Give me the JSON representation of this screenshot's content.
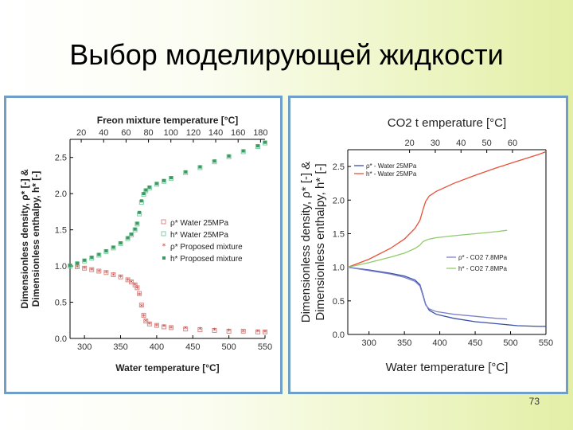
{
  "slide": {
    "title": "Выбор моделирующей жидкости",
    "page_number": "73"
  },
  "chart_data": [
    {
      "type": "scatter",
      "title": "",
      "top_axis": {
        "label": "Freon mixture temperature [°C]",
        "range": [
          10,
          184
        ],
        "ticks": [
          20,
          40,
          60,
          80,
          100,
          120,
          140,
          160,
          180
        ]
      },
      "xlabel": "Water temperature [°C]",
      "ylabel_line1": "Dimensionless density, ρ* [-] &",
      "ylabel_line2": "Dimensionless enthalpy, h* [-]",
      "xlim": [
        280,
        550
      ],
      "ylim": [
        0,
        2.75
      ],
      "x_ticks": [
        300,
        350,
        400,
        450,
        500,
        550
      ],
      "y_ticks": [
        0.0,
        0.5,
        1.0,
        1.5,
        2.0,
        2.5
      ],
      "legend_position": "center-right",
      "series": [
        {
          "name": "ρ* Water 25MPa",
          "marker": "open-square",
          "color": "#d98a8a",
          "x": [
            280,
            290,
            300,
            310,
            320,
            330,
            340,
            350,
            360,
            365,
            370,
            373,
            376,
            379,
            382,
            385,
            390,
            400,
            410,
            420,
            440,
            460,
            480,
            500,
            520,
            540,
            550
          ],
          "y": [
            1.0,
            0.99,
            0.97,
            0.95,
            0.93,
            0.91,
            0.88,
            0.85,
            0.81,
            0.78,
            0.74,
            0.7,
            0.62,
            0.46,
            0.32,
            0.24,
            0.2,
            0.18,
            0.16,
            0.15,
            0.13,
            0.12,
            0.11,
            0.1,
            0.1,
            0.09,
            0.09
          ]
        },
        {
          "name": "h* Water 25MPa",
          "marker": "open-square",
          "color": "#7fcfa8",
          "x": [
            280,
            290,
            300,
            310,
            320,
            330,
            340,
            350,
            360,
            365,
            370,
            373,
            376,
            379,
            382,
            385,
            390,
            400,
            410,
            420,
            440,
            460,
            480,
            500,
            520,
            540,
            550
          ],
          "y": [
            1.0,
            1.03,
            1.07,
            1.11,
            1.15,
            1.2,
            1.25,
            1.31,
            1.38,
            1.43,
            1.5,
            1.58,
            1.72,
            1.88,
            1.99,
            2.04,
            2.08,
            2.13,
            2.17,
            2.21,
            2.29,
            2.36,
            2.44,
            2.51,
            2.58,
            2.65,
            2.7
          ]
        },
        {
          "name": "ρ* Proposed mixture",
          "marker": "star",
          "color": "#c0392b",
          "x": [
            280,
            290,
            300,
            310,
            320,
            330,
            340,
            350,
            360,
            365,
            370,
            373,
            376,
            379,
            382,
            385,
            390,
            400,
            410,
            420,
            440,
            460,
            480,
            500,
            520,
            540,
            550
          ],
          "y": [
            0.99,
            0.98,
            0.96,
            0.94,
            0.92,
            0.9,
            0.87,
            0.84,
            0.8,
            0.77,
            0.73,
            0.69,
            0.6,
            0.44,
            0.3,
            0.23,
            0.19,
            0.17,
            0.16,
            0.14,
            0.13,
            0.12,
            0.11,
            0.1,
            0.09,
            0.09,
            0.08
          ]
        },
        {
          "name": "h* Proposed mixture",
          "marker": "filled-square",
          "color": "#3c9a5f",
          "x": [
            280,
            290,
            300,
            310,
            320,
            330,
            340,
            350,
            360,
            365,
            370,
            373,
            376,
            379,
            382,
            385,
            390,
            400,
            410,
            420,
            440,
            460,
            480,
            500,
            520,
            540,
            550
          ],
          "y": [
            1.01,
            1.04,
            1.08,
            1.12,
            1.16,
            1.21,
            1.26,
            1.32,
            1.39,
            1.44,
            1.51,
            1.59,
            1.74,
            1.9,
            2.0,
            2.05,
            2.09,
            2.14,
            2.18,
            2.22,
            2.3,
            2.37,
            2.45,
            2.52,
            2.59,
            2.66,
            2.71
          ]
        }
      ]
    },
    {
      "type": "line",
      "title": "",
      "top_axis": {
        "label": "CO2 t emperature [°C]",
        "range": [
          -4,
          73
        ],
        "ticks": [
          20,
          30,
          40,
          50,
          60
        ]
      },
      "xlabel": "Water temperature [°C]",
      "ylabel_line1": "Dimensionless density, ρ* [-] &",
      "ylabel_line2": "Dimensionless enthalpy, h* [-]",
      "xlim": [
        270,
        550
      ],
      "ylim": [
        0,
        2.75
      ],
      "x_ticks": [
        300,
        350,
        400,
        450,
        500,
        550
      ],
      "y_ticks": [
        0.0,
        0.5,
        1.0,
        1.5,
        2.0,
        2.5
      ],
      "legend_position": "top-left and center-right",
      "series": [
        {
          "name": "ρ* - Water 25MPa",
          "color": "#3a4fa8",
          "x": [
            270,
            300,
            330,
            350,
            365,
            372,
            376,
            380,
            385,
            395,
            420,
            450,
            480,
            510,
            540,
            550
          ],
          "y": [
            1.0,
            0.96,
            0.91,
            0.87,
            0.81,
            0.74,
            0.6,
            0.45,
            0.36,
            0.3,
            0.24,
            0.19,
            0.16,
            0.13,
            0.12,
            0.12
          ]
        },
        {
          "name": "h* - Water 25MPa",
          "color": "#e8503a",
          "x": [
            270,
            300,
            330,
            350,
            365,
            372,
            376,
            380,
            385,
            395,
            420,
            450,
            480,
            510,
            540,
            550
          ],
          "y": [
            1.0,
            1.12,
            1.28,
            1.42,
            1.58,
            1.7,
            1.85,
            1.98,
            2.06,
            2.13,
            2.25,
            2.37,
            2.48,
            2.58,
            2.68,
            2.72
          ]
        },
        {
          "name": "ρ* - CO2 7.8MPa",
          "color": "#7c82c8",
          "x": [
            270,
            300,
            330,
            350,
            365,
            372,
            376,
            380,
            385,
            395,
            420,
            450,
            480,
            495
          ],
          "y": [
            1.0,
            0.95,
            0.9,
            0.85,
            0.79,
            0.72,
            0.58,
            0.44,
            0.38,
            0.34,
            0.3,
            0.27,
            0.24,
            0.23
          ]
        },
        {
          "name": "h* - CO2 7.8MPa",
          "color": "#8fcb6b",
          "x": [
            270,
            300,
            330,
            350,
            365,
            372,
            376,
            380,
            385,
            395,
            420,
            450,
            480,
            495
          ],
          "y": [
            1.0,
            1.07,
            1.15,
            1.21,
            1.28,
            1.33,
            1.38,
            1.4,
            1.42,
            1.44,
            1.47,
            1.5,
            1.53,
            1.55
          ]
        }
      ]
    }
  ]
}
